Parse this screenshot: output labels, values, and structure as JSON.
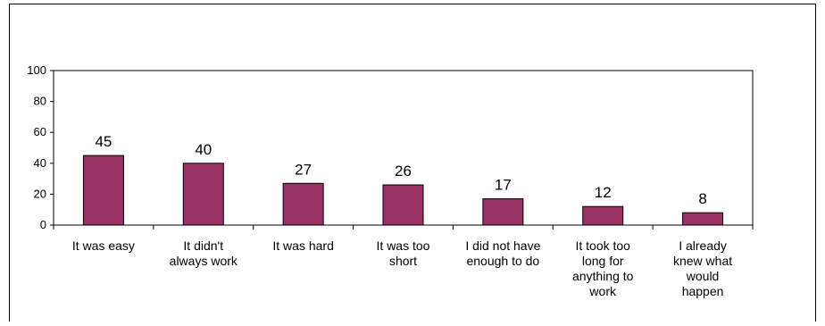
{
  "chart_data": {
    "type": "bar",
    "categories": [
      "It was easy",
      "It didn't always work",
      "It was hard",
      "It was too short",
      "I did not have enough to do",
      "It took too long for anything to work",
      "I already knew what would happen"
    ],
    "category_lines": [
      [
        "It was easy"
      ],
      [
        "It didn't",
        "always work"
      ],
      [
        "It was hard"
      ],
      [
        "It was too",
        "short"
      ],
      [
        "I did not have",
        "enough to do"
      ],
      [
        "It took too",
        "long for",
        "anything to",
        "work"
      ],
      [
        "I already",
        "knew what",
        "would",
        "happen"
      ]
    ],
    "values": [
      45,
      40,
      27,
      26,
      17,
      12,
      8
    ],
    "ylim": [
      0,
      100
    ],
    "yticks": [
      0,
      20,
      40,
      60,
      80,
      100
    ],
    "bar_color": "#993366",
    "grid": false,
    "legend": "none"
  }
}
